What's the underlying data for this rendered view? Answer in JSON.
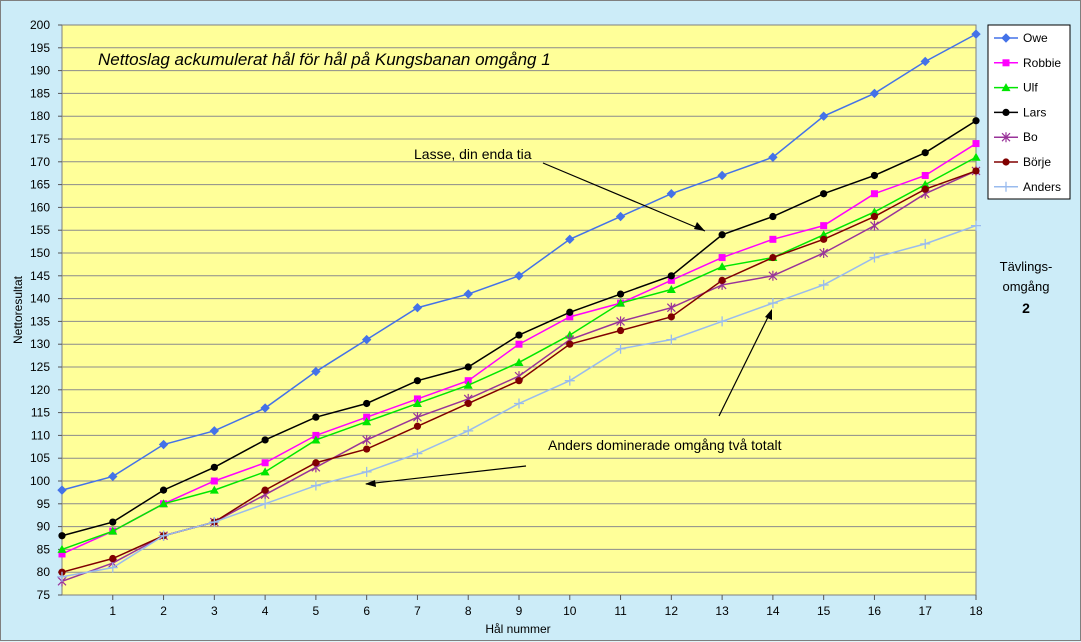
{
  "chart_data": {
    "type": "line",
    "title": "Nettoslag ackumulerat hål för hål på Kungsbanan omgång 1",
    "xlabel": "Hål nummer",
    "ylabel": "Nettoresultat",
    "xlim": [
      0,
      18
    ],
    "ylim": [
      75,
      200
    ],
    "x_ticks": [
      1,
      2,
      3,
      4,
      5,
      6,
      7,
      8,
      9,
      10,
      11,
      12,
      13,
      14,
      15,
      16,
      17,
      18
    ],
    "y_tick_step": 5,
    "grid": "horizontal",
    "legend_position": "right",
    "x": [
      0,
      1,
      2,
      3,
      4,
      5,
      6,
      7,
      8,
      9,
      10,
      11,
      12,
      13,
      14,
      15,
      16,
      17,
      18
    ],
    "series": [
      {
        "name": "Owe",
        "color": "#4472e8",
        "marker": "diamond",
        "values": [
          98,
          101,
          108,
          111,
          116,
          124,
          131,
          138,
          141,
          145,
          153,
          158,
          163,
          167,
          171,
          180,
          185,
          192,
          198
        ]
      },
      {
        "name": "Robbie",
        "color": "#ff00ff",
        "marker": "square",
        "values": [
          84,
          89,
          95,
          100,
          104,
          110,
          114,
          118,
          122,
          130,
          136,
          139,
          144,
          149,
          153,
          156,
          163,
          167,
          174
        ]
      },
      {
        "name": "Ulf",
        "color": "#00e600",
        "marker": "triangle",
        "values": [
          85,
          89,
          95,
          98,
          102,
          109,
          113,
          117,
          121,
          126,
          132,
          139,
          142,
          147,
          149,
          154,
          159,
          165,
          171
        ]
      },
      {
        "name": "Lars",
        "color": "#000000",
        "marker": "circle",
        "values": [
          88,
          91,
          98,
          103,
          109,
          114,
          117,
          122,
          125,
          132,
          137,
          141,
          145,
          154,
          158,
          163,
          167,
          172,
          179
        ]
      },
      {
        "name": "Bo",
        "color": "#993399",
        "marker": "star",
        "values": [
          78,
          82,
          88,
          91,
          97,
          103,
          109,
          114,
          118,
          123,
          131,
          135,
          138,
          143,
          145,
          150,
          156,
          163,
          168
        ]
      },
      {
        "name": "Börje",
        "color": "#800000",
        "marker": "circle",
        "values": [
          80,
          83,
          88,
          91,
          98,
          104,
          107,
          112,
          117,
          122,
          130,
          133,
          136,
          144,
          149,
          153,
          158,
          164,
          168
        ]
      },
      {
        "name": "Anders",
        "color": "#99bbee",
        "marker": "plus",
        "values": [
          79,
          81,
          88,
          91,
          95,
          99,
          102,
          106,
          111,
          117,
          122,
          129,
          131,
          135,
          139,
          143,
          149,
          152,
          156
        ]
      }
    ],
    "annotations": [
      {
        "text": "Lasse, din enda tia"
      },
      {
        "text": "Anders dominerade omgång två totalt"
      }
    ],
    "side_label": {
      "line1": "Tävlings-",
      "line2": "omgång",
      "number": "2"
    },
    "plot_background": "#ffff99"
  }
}
